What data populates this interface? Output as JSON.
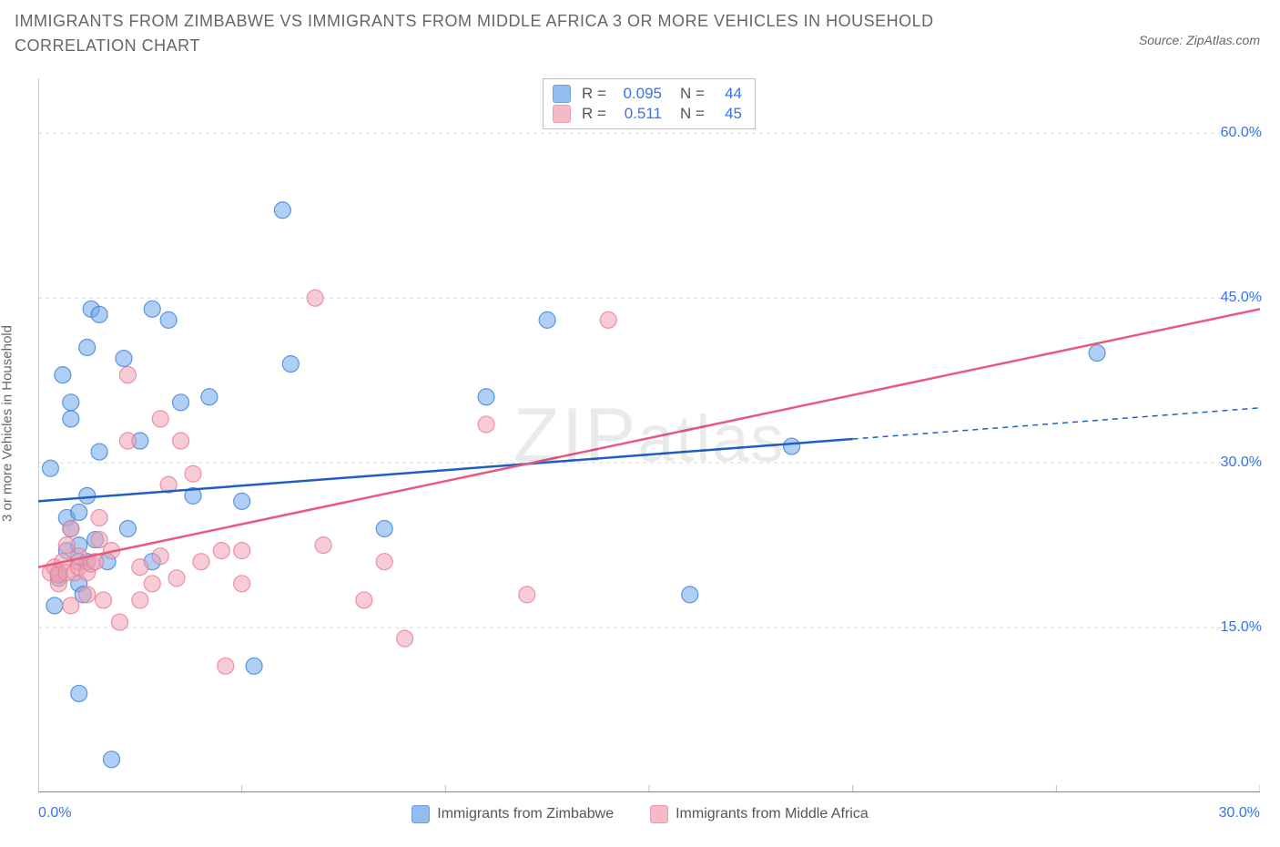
{
  "title": "IMMIGRANTS FROM ZIMBABWE VS IMMIGRANTS FROM MIDDLE AFRICA 3 OR MORE VEHICLES IN HOUSEHOLD CORRELATION CHART",
  "source": "Source: ZipAtlas.com",
  "watermark": "ZIPatlas",
  "y_axis_label": "3 or more Vehicles in Household",
  "chart": {
    "type": "scatter",
    "xlim": [
      0,
      30
    ],
    "ylim": [
      0,
      65
    ],
    "x_ticks": [
      0,
      5,
      10,
      15,
      20,
      25,
      30
    ],
    "x_tick_labels": {
      "0": "0.0%",
      "30": "30.0%"
    },
    "y_ticks": [
      15,
      30,
      45,
      60
    ],
    "y_tick_labels": {
      "15": "15.0%",
      "30": "30.0%",
      "45": "45.0%",
      "60": "60.0%"
    },
    "background_color": "#ffffff",
    "grid_color": "#d8d8d8",
    "axis_color": "#bdbdbd",
    "x_axis_color": "#666666",
    "marker_radius": 9,
    "marker_opacity": 0.55,
    "line_width": 2.5
  },
  "series": [
    {
      "name": "Immigrants from Zimbabwe",
      "color": "#6fa8ec",
      "stroke": "#3f7fd4",
      "line_color": "#1f5fc4",
      "R": "0.095",
      "N": "44",
      "trend": {
        "x1": 0,
        "y1": 26.5,
        "x2": 30,
        "y2": 35.0,
        "solid_until_x": 20
      },
      "points": [
        [
          0.3,
          29.5
        ],
        [
          0.4,
          17.0
        ],
        [
          0.5,
          19.5
        ],
        [
          0.5,
          20.0
        ],
        [
          0.6,
          38.0
        ],
        [
          0.7,
          22.0
        ],
        [
          0.7,
          25.0
        ],
        [
          0.8,
          24.0
        ],
        [
          0.8,
          34.0
        ],
        [
          0.8,
          35.5
        ],
        [
          1.0,
          9.0
        ],
        [
          1.0,
          19.0
        ],
        [
          1.0,
          21.0
        ],
        [
          1.0,
          22.5
        ],
        [
          1.0,
          25.5
        ],
        [
          1.1,
          18.0
        ],
        [
          1.2,
          21.0
        ],
        [
          1.2,
          27.0
        ],
        [
          1.2,
          40.5
        ],
        [
          1.3,
          44.0
        ],
        [
          1.4,
          23.0
        ],
        [
          1.5,
          31.0
        ],
        [
          1.5,
          43.5
        ],
        [
          1.7,
          21.0
        ],
        [
          1.8,
          3.0
        ],
        [
          2.1,
          39.5
        ],
        [
          2.2,
          24.0
        ],
        [
          2.5,
          32.0
        ],
        [
          2.8,
          21.0
        ],
        [
          2.8,
          44.0
        ],
        [
          3.2,
          43.0
        ],
        [
          3.5,
          35.5
        ],
        [
          3.8,
          27.0
        ],
        [
          4.2,
          36.0
        ],
        [
          5.0,
          26.5
        ],
        [
          5.3,
          11.5
        ],
        [
          6.0,
          53.0
        ],
        [
          6.2,
          39.0
        ],
        [
          8.5,
          24.0
        ],
        [
          11.0,
          36.0
        ],
        [
          12.5,
          43.0
        ],
        [
          16.0,
          18.0
        ],
        [
          18.5,
          31.5
        ],
        [
          26.0,
          40.0
        ]
      ]
    },
    {
      "name": "Immigrants from Middle Africa",
      "color": "#f2a3b3",
      "stroke": "#e87a93",
      "line_color": "#e85a7d",
      "R": "0.511",
      "N": "45",
      "trend": {
        "x1": 0,
        "y1": 20.5,
        "x2": 30,
        "y2": 44.0,
        "solid_until_x": 30
      },
      "points": [
        [
          0.3,
          20.0
        ],
        [
          0.4,
          20.5
        ],
        [
          0.5,
          19.0
        ],
        [
          0.5,
          19.8
        ],
        [
          0.6,
          21.0
        ],
        [
          0.7,
          20.0
        ],
        [
          0.7,
          22.5
        ],
        [
          0.8,
          17.0
        ],
        [
          0.8,
          24.0
        ],
        [
          0.9,
          20.0
        ],
        [
          1.0,
          20.5
        ],
        [
          1.0,
          21.5
        ],
        [
          1.2,
          18.0
        ],
        [
          1.2,
          20.0
        ],
        [
          1.3,
          20.8
        ],
        [
          1.4,
          21.0
        ],
        [
          1.5,
          23.0
        ],
        [
          1.5,
          25.0
        ],
        [
          1.6,
          17.5
        ],
        [
          1.8,
          22.0
        ],
        [
          2.0,
          15.5
        ],
        [
          2.2,
          32.0
        ],
        [
          2.2,
          38.0
        ],
        [
          2.5,
          17.5
        ],
        [
          2.5,
          20.5
        ],
        [
          2.8,
          19.0
        ],
        [
          3.0,
          34.0
        ],
        [
          3.0,
          21.5
        ],
        [
          3.2,
          28.0
        ],
        [
          3.4,
          19.5
        ],
        [
          3.5,
          32.0
        ],
        [
          3.8,
          29.0
        ],
        [
          4.0,
          21.0
        ],
        [
          4.5,
          22.0
        ],
        [
          4.6,
          11.5
        ],
        [
          5.0,
          19.0
        ],
        [
          5.0,
          22.0
        ],
        [
          6.8,
          45.0
        ],
        [
          7.0,
          22.5
        ],
        [
          8.0,
          17.5
        ],
        [
          8.5,
          21.0
        ],
        [
          9.0,
          14.0
        ],
        [
          11.0,
          33.5
        ],
        [
          12.0,
          18.0
        ],
        [
          14.0,
          43.0
        ]
      ]
    }
  ],
  "legend_stats_labels": {
    "R": "R =",
    "N": "N ="
  },
  "bottom_legend": [
    {
      "series_index": 0
    },
    {
      "series_index": 1
    }
  ]
}
